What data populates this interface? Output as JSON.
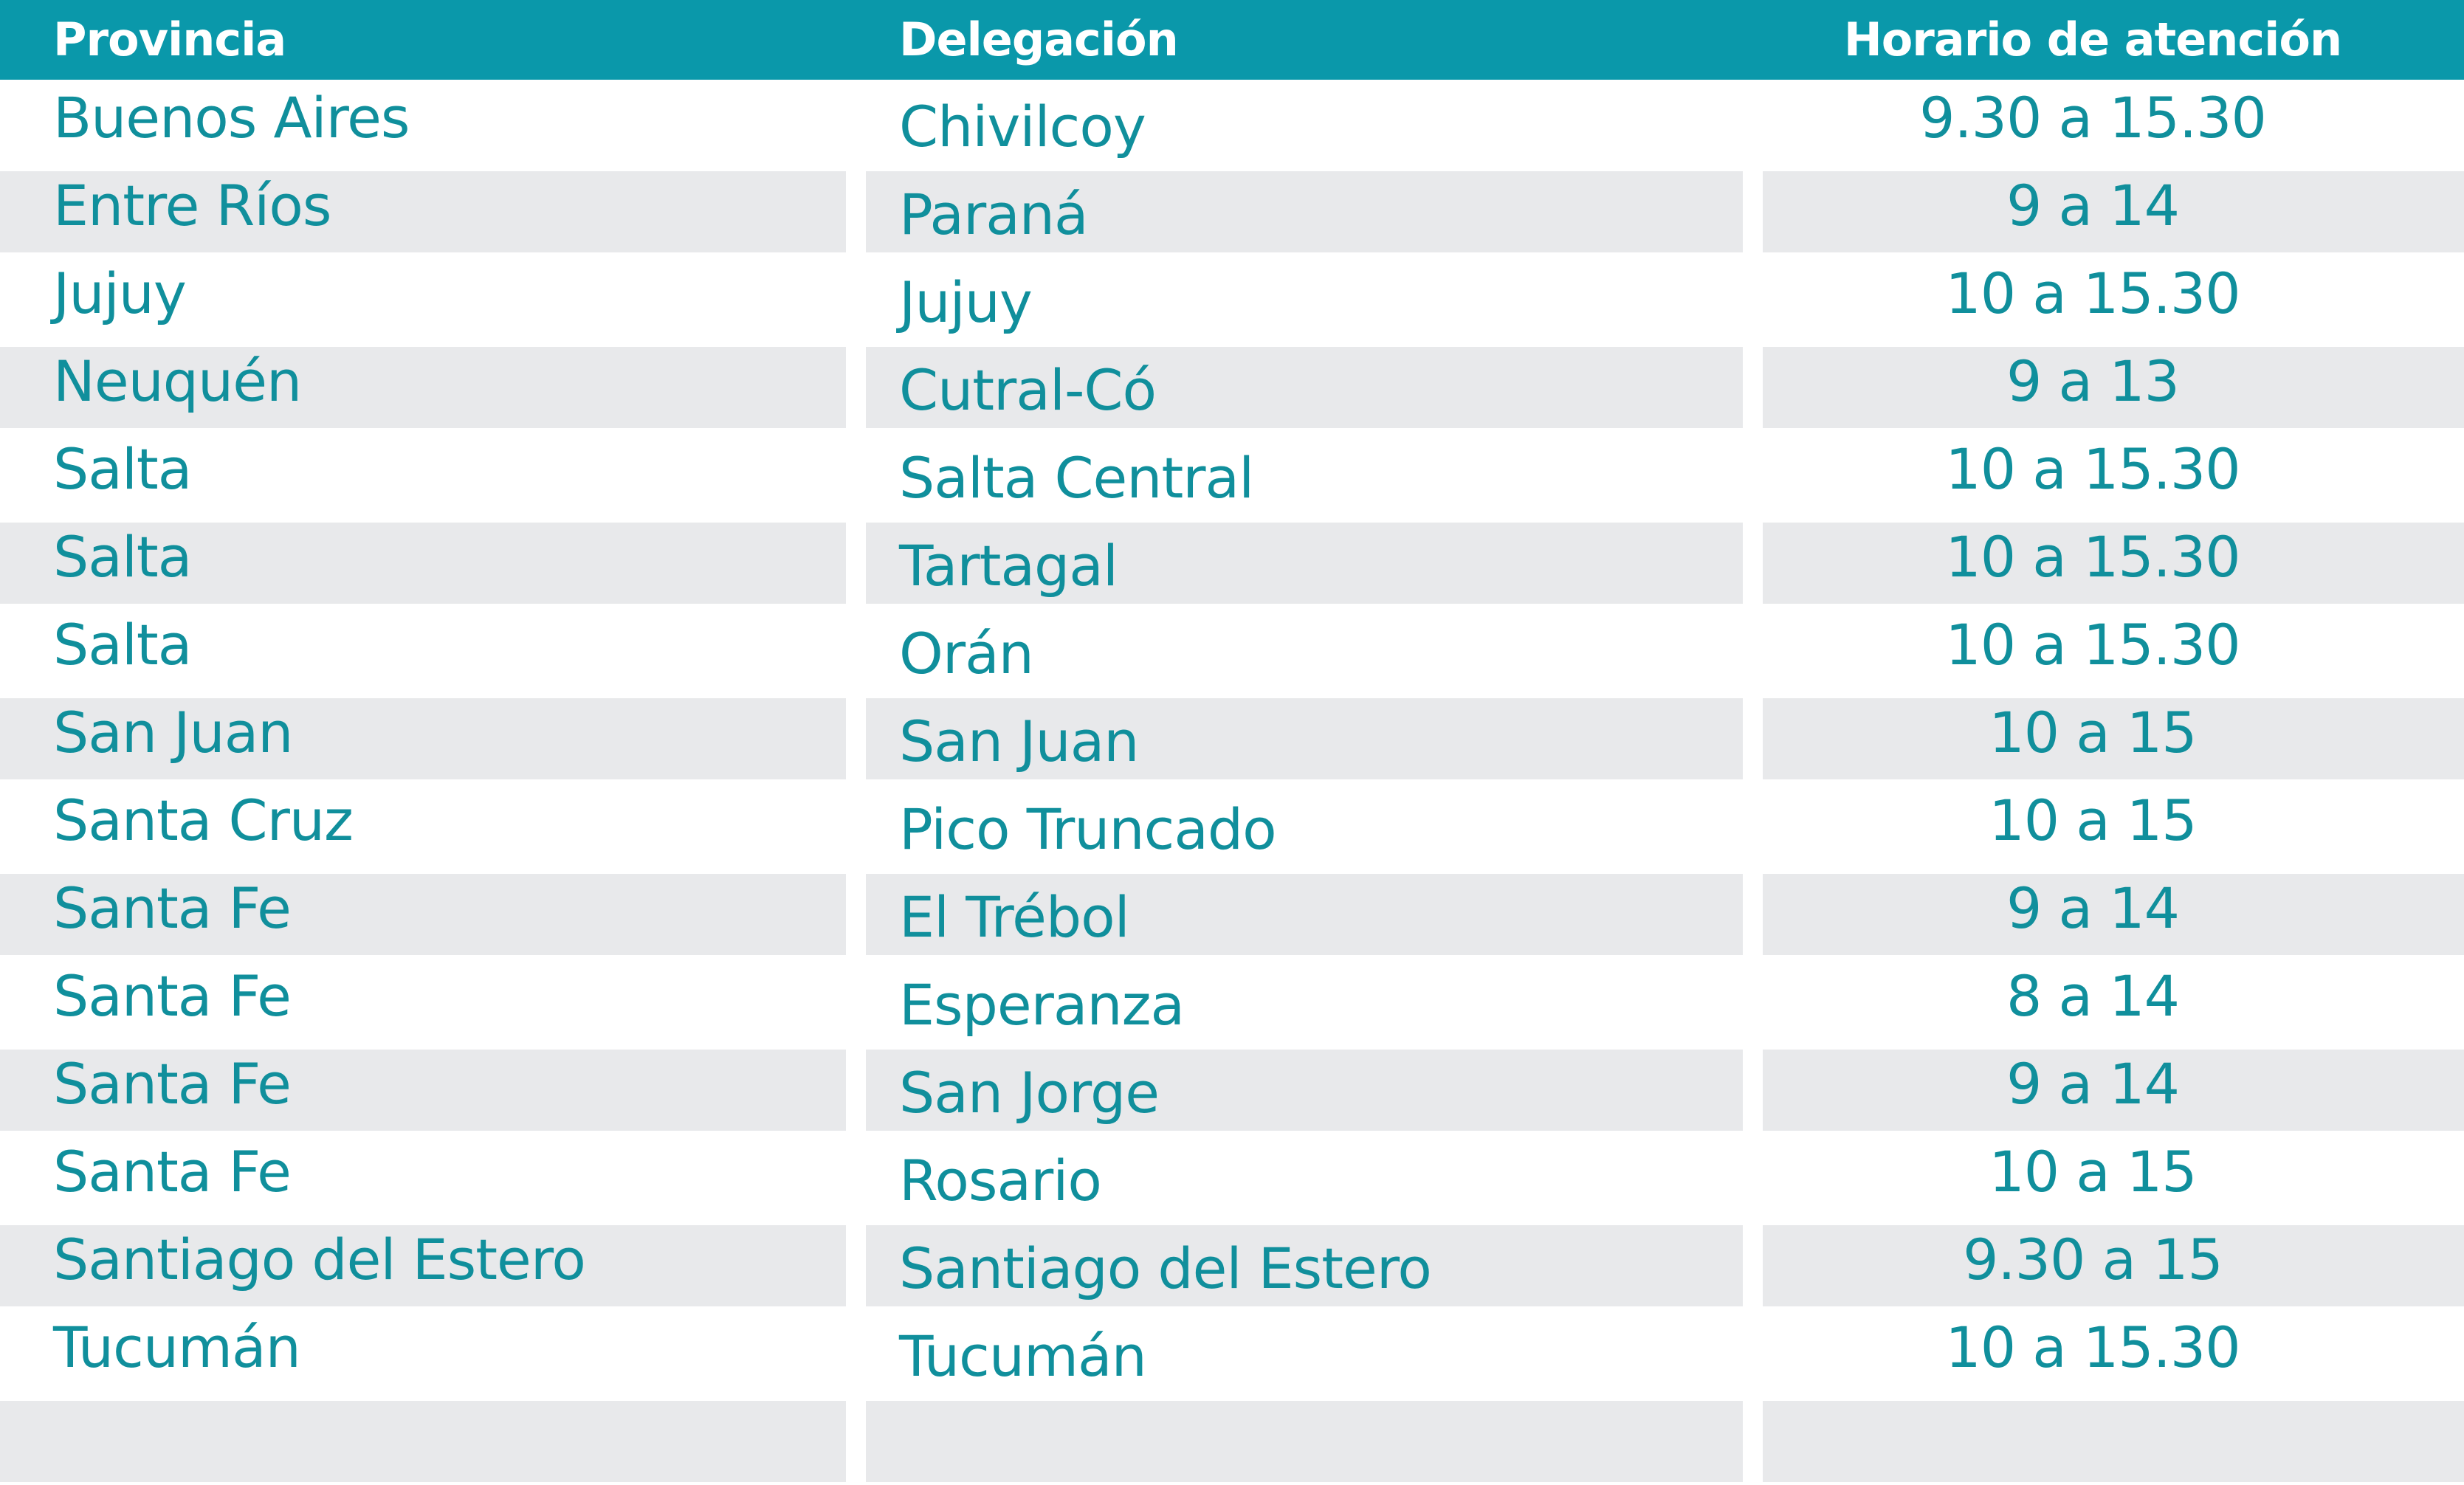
{
  "table": {
    "headers": [
      "Provincia",
      "Delegación",
      "Horario de atención"
    ],
    "rows": [
      [
        "Buenos Aires",
        "Chivilcoy",
        "9.30 a 15.30"
      ],
      [
        "Entre Ríos",
        "Paraná",
        "9 a 14"
      ],
      [
        "Jujuy",
        "Jujuy",
        "10 a 15.30"
      ],
      [
        "Neuquén",
        "Cutral-Có",
        "9 a 13"
      ],
      [
        "Salta",
        "Salta Central",
        "10 a 15.30"
      ],
      [
        "Salta",
        "Tartagal",
        "10 a 15.30"
      ],
      [
        "Salta",
        "Orán",
        "10 a 15.30"
      ],
      [
        "San Juan",
        "San Juan",
        "10 a 15"
      ],
      [
        "Santa Cruz",
        "Pico Truncado",
        "10 a 15"
      ],
      [
        "Santa Fe",
        "El Trébol",
        "9 a 14"
      ],
      [
        "Santa Fe",
        "Esperanza",
        "8 a 14"
      ],
      [
        "Santa Fe",
        "San Jorge",
        "9 a 14"
      ],
      [
        "Santa Fe",
        "Rosario",
        "10 a 15"
      ],
      [
        "Santiago del Estero",
        "Santiago del Estero",
        "9.30 a 15"
      ],
      [
        "Tucumán",
        "Tucumán",
        "10 a 15.30"
      ],
      [
        "",
        "",
        ""
      ]
    ]
  },
  "colors": {
    "header_bg": "#0a98aa",
    "header_text": "#ffffff",
    "body_text": "#108f9c",
    "row_shade": "#e8e9eb"
  }
}
